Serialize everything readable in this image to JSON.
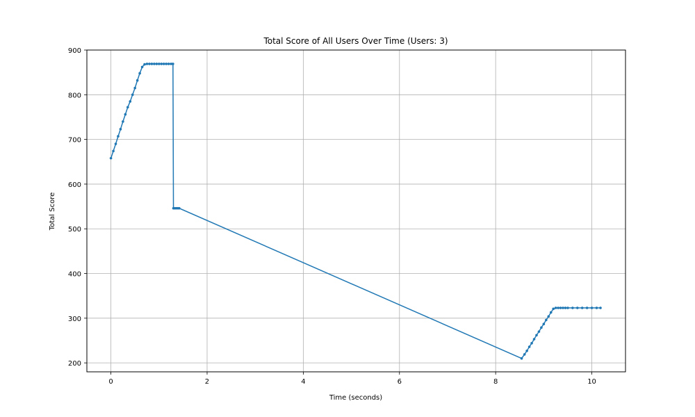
{
  "chart_data": {
    "type": "line",
    "title": "Total Score of All Users Over Time (Users: 3)",
    "xlabel": "Time (seconds)",
    "ylabel": "Total Score",
    "xlim": [
      -0.5,
      10.7
    ],
    "ylim": [
      180,
      900
    ],
    "xticks": [
      0,
      2,
      4,
      6,
      8,
      10
    ],
    "yticks": [
      200,
      300,
      400,
      500,
      600,
      700,
      800,
      900
    ],
    "grid": true,
    "series_color": "#1f77b4",
    "series": [
      {
        "x": [
          0,
          0.05,
          0.1,
          0.15,
          0.2,
          0.25,
          0.3,
          0.35,
          0.4,
          0.45,
          0.5,
          0.55,
          0.6,
          0.65,
          0.7,
          0.75,
          0.8,
          0.85,
          0.9,
          0.95,
          1.0,
          1.05,
          1.1,
          1.15,
          1.2,
          1.25,
          1.29,
          1.3,
          1.33,
          1.36,
          1.39,
          1.42,
          8.54,
          8.6,
          8.65,
          8.7,
          8.75,
          8.8,
          8.85,
          8.9,
          8.95,
          9.0,
          9.05,
          9.1,
          9.15,
          9.2,
          9.25,
          9.3,
          9.35,
          9.4,
          9.45,
          9.5,
          9.6,
          9.7,
          9.8,
          9.9,
          10.0,
          10.1,
          10.18
        ],
        "y": [
          658,
          674,
          690,
          707,
          723,
          740,
          756,
          772,
          785,
          800,
          815,
          832,
          848,
          862,
          868,
          869,
          869,
          869,
          869,
          869,
          869,
          869,
          869,
          869,
          869,
          869,
          869,
          546,
          546,
          546,
          546,
          546,
          210,
          219,
          227,
          236,
          244,
          253,
          262,
          270,
          279,
          287,
          296,
          304,
          313,
          321,
          323,
          323,
          323,
          323,
          323,
          323,
          323,
          323,
          323,
          323,
          323,
          323,
          323
        ]
      }
    ]
  }
}
